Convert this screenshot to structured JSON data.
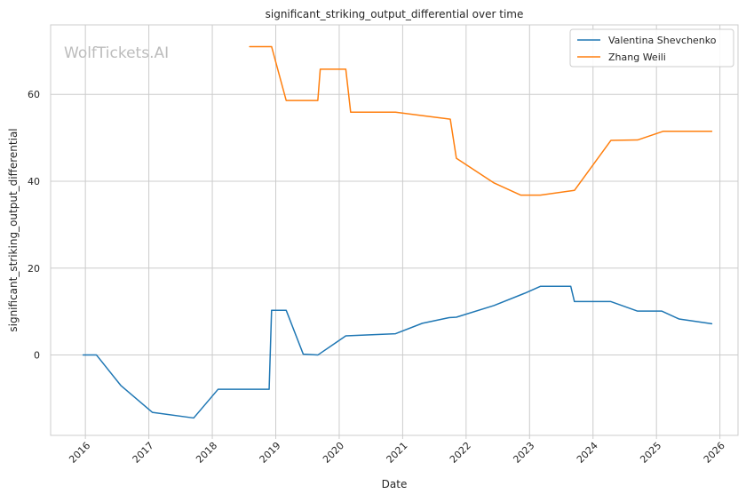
{
  "chart_data": {
    "type": "line",
    "title": "significant_striking_output_differential over time",
    "xlabel": "Date",
    "ylabel": "significant_striking_output_differential",
    "watermark": "WolfTickets.AI",
    "x_ticks": [
      "2016",
      "2017",
      "2018",
      "2019",
      "2020",
      "2021",
      "2022",
      "2023",
      "2024",
      "2025",
      "2026"
    ],
    "y_ticks": [
      "0",
      "20",
      "40",
      "60"
    ],
    "x_range": [
      "2015-06-15",
      "2026-04-15"
    ],
    "ylim": [
      -18.5,
      76.0
    ],
    "grid": true,
    "legend_position": "top-right",
    "series": [
      {
        "name": "Valentina Shevchenko",
        "color": "#1f77b4",
        "points": [
          [
            "2015-12-19",
            0.0
          ],
          [
            "2016-03-05",
            0.0
          ],
          [
            "2016-07-23",
            -7.0
          ],
          [
            "2017-01-21",
            -13.2
          ],
          [
            "2017-09-16",
            -14.5
          ],
          [
            "2018-02-03",
            -7.9
          ],
          [
            "2018-11-24",
            -7.9
          ],
          [
            "2018-12-08",
            10.3
          ],
          [
            "2019-03-02",
            10.3
          ],
          [
            "2019-06-08",
            0.2
          ],
          [
            "2019-08-31",
            0.0
          ],
          [
            "2020-02-08",
            4.4
          ],
          [
            "2020-11-21",
            4.9
          ],
          [
            "2021-04-24",
            7.3
          ],
          [
            "2021-09-25",
            8.6
          ],
          [
            "2021-11-06",
            8.7
          ],
          [
            "2022-06-11",
            11.4
          ],
          [
            "2022-12-03",
            14.2
          ],
          [
            "2023-03-04",
            15.8
          ],
          [
            "2023-08-26",
            15.8
          ],
          [
            "2023-09-16",
            12.3
          ],
          [
            "2024-04-13",
            12.3
          ],
          [
            "2024-09-14",
            10.1
          ],
          [
            "2025-02-01",
            10.1
          ],
          [
            "2025-05-10",
            8.3
          ],
          [
            "2025-11-15",
            7.2
          ]
        ]
      },
      {
        "name": "Zhang Weili",
        "color": "#ff7f0e",
        "points": [
          [
            "2018-08-04",
            71.0
          ],
          [
            "2018-12-08",
            71.0
          ],
          [
            "2019-03-02",
            58.6
          ],
          [
            "2019-08-31",
            58.6
          ],
          [
            "2019-09-14",
            65.8
          ],
          [
            "2020-02-08",
            65.8
          ],
          [
            "2020-03-07",
            55.9
          ],
          [
            "2020-11-21",
            55.9
          ],
          [
            "2021-04-24",
            55.1
          ],
          [
            "2021-10-02",
            54.3
          ],
          [
            "2021-11-06",
            45.3
          ],
          [
            "2022-06-11",
            39.6
          ],
          [
            "2022-11-12",
            36.8
          ],
          [
            "2023-03-04",
            36.8
          ],
          [
            "2023-09-16",
            37.9
          ],
          [
            "2024-04-13",
            49.4
          ],
          [
            "2024-09-14",
            49.5
          ],
          [
            "2025-02-08",
            51.5
          ],
          [
            "2025-05-10",
            51.5
          ],
          [
            "2025-11-15",
            51.5
          ]
        ]
      }
    ]
  }
}
